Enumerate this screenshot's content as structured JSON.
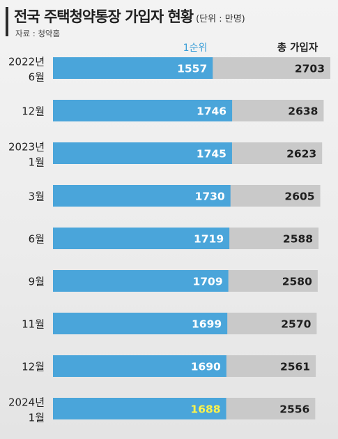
{
  "header": {
    "title": "전국 주택청약통장 가입자 현황",
    "unit": "(단위 : 만명)",
    "source": "자료 : 청약홈"
  },
  "columns": {
    "first_rank": "1순위",
    "total": "총 가입자"
  },
  "colors": {
    "first_rank_bar": "#4aa5da",
    "total_bar": "#c9c9c9",
    "first_rank_text": "#ffffff",
    "highlight_text": "#fff34a",
    "total_text": "#1f1f1f",
    "first_rank_header": "#3b9fd8"
  },
  "chart_data": {
    "type": "bar",
    "orientation": "horizontal",
    "title": "전국 주택청약통장 가입자 현황",
    "unit": "(단위 : 만명)",
    "categories": [
      [
        "2022년",
        "6월"
      ],
      [
        "12월"
      ],
      [
        "2023년",
        "1월"
      ],
      [
        "3월"
      ],
      [
        "6월"
      ],
      [
        "9월"
      ],
      [
        "11월"
      ],
      [
        "12월"
      ],
      [
        "2024년",
        "1월"
      ]
    ],
    "series": [
      {
        "name": "1순위",
        "values": [
          1557,
          1746,
          1745,
          1730,
          1719,
          1709,
          1699,
          1690,
          1688
        ]
      },
      {
        "name": "총 가입자",
        "values": [
          2703,
          2638,
          2623,
          2605,
          2588,
          2580,
          2570,
          2561,
          2556
        ]
      }
    ],
    "highlight_index": 8,
    "legend": "top"
  }
}
